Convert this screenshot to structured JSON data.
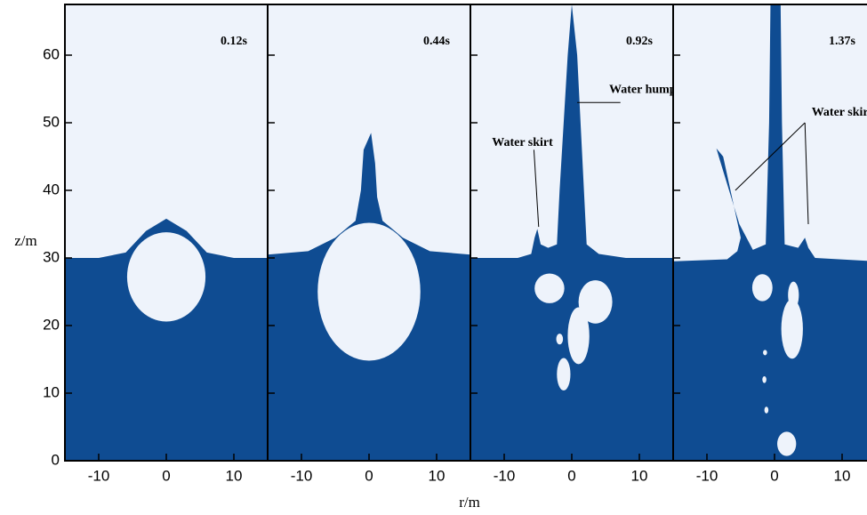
{
  "figure": {
    "xlabel": "r/m",
    "ylabel": "z/m"
  },
  "chart_data": [
    {
      "type": "field",
      "annotation": "0.12s",
      "xlim": [
        -15,
        15
      ],
      "xticks": [
        -10,
        0,
        10
      ],
      "ylim": [
        0,
        67.5
      ],
      "yticks": [
        0,
        10,
        20,
        30,
        40,
        50,
        60
      ]
    },
    {
      "type": "field",
      "annotation": "0.44s",
      "xlim": [
        -15,
        15
      ],
      "xticks": [
        -10,
        0,
        10
      ],
      "ylim": [
        0,
        67.5
      ]
    },
    {
      "type": "field",
      "annotation": "0.92s",
      "xlim": [
        -15,
        15
      ],
      "xticks": [
        -10,
        0,
        10
      ],
      "ylim": [
        0,
        67.5
      ],
      "labels": [
        "Water hump",
        "Water skirt"
      ]
    },
    {
      "type": "field",
      "annotation": "1.37s",
      "xlim": [
        -15,
        15
      ],
      "xticks": [
        -10,
        0,
        10
      ],
      "ylim": [
        0,
        67.5
      ],
      "labels": [
        "Water skirt"
      ]
    }
  ]
}
